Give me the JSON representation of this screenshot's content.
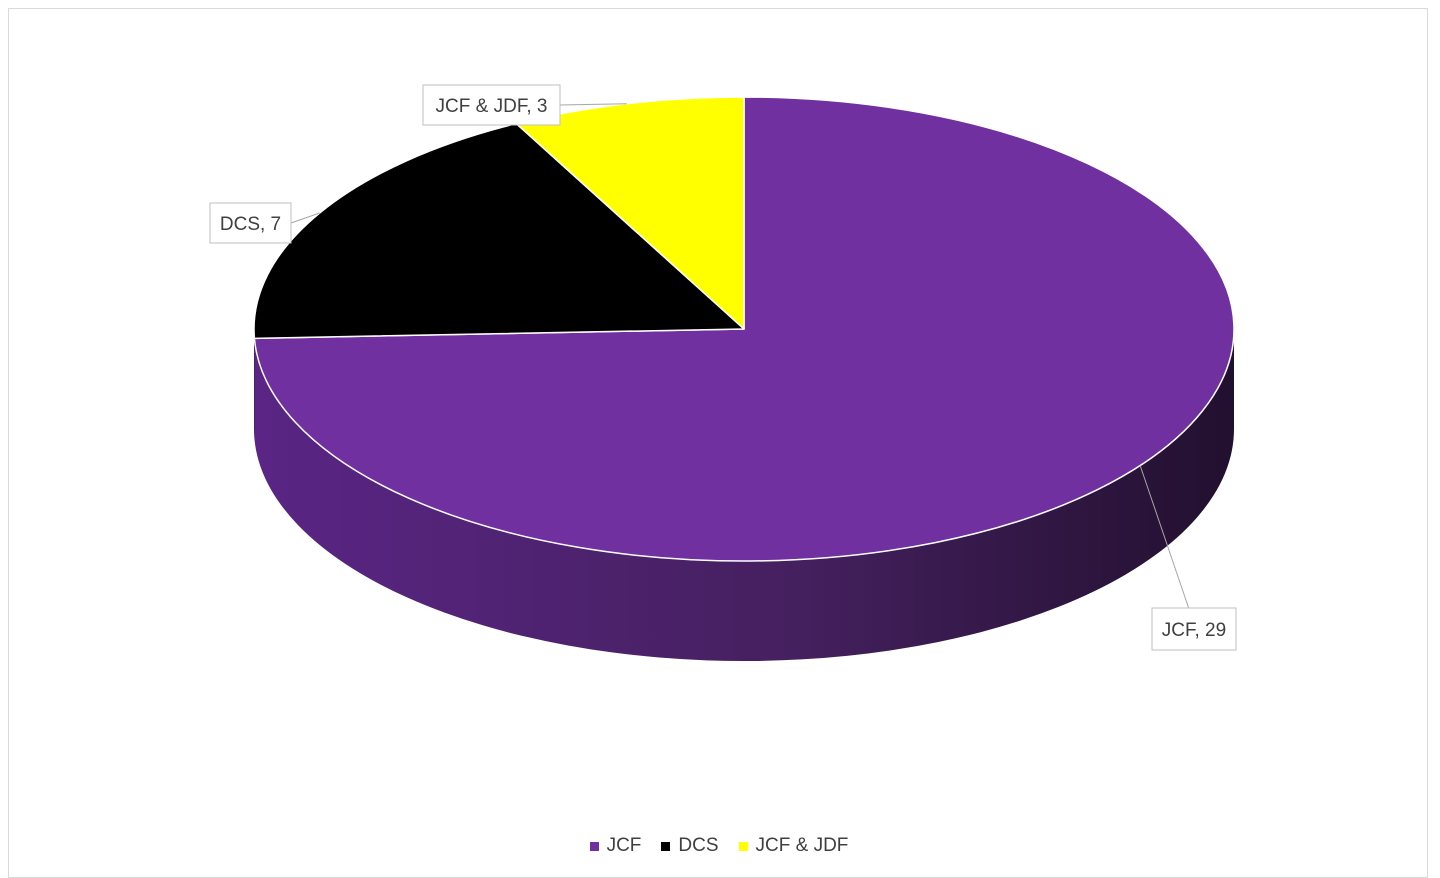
{
  "chart_data": {
    "type": "pie",
    "style": "3d",
    "title": "",
    "categories": [
      "JCF",
      "DCS",
      "JCF & JDF"
    ],
    "values": [
      29,
      7,
      3
    ],
    "colors": [
      "#7030A0",
      "#000000",
      "#FFFF00"
    ],
    "data_labels": [
      "JCF, 29",
      "DCS, 7",
      "JCF & JDF, 3"
    ],
    "legend_position": "bottom"
  },
  "legend": {
    "items": [
      {
        "label": "JCF",
        "color": "#7030A0"
      },
      {
        "label": "DCS",
        "color": "#000000"
      },
      {
        "label": "JCF & JDF",
        "color": "#FFFF00"
      }
    ]
  }
}
